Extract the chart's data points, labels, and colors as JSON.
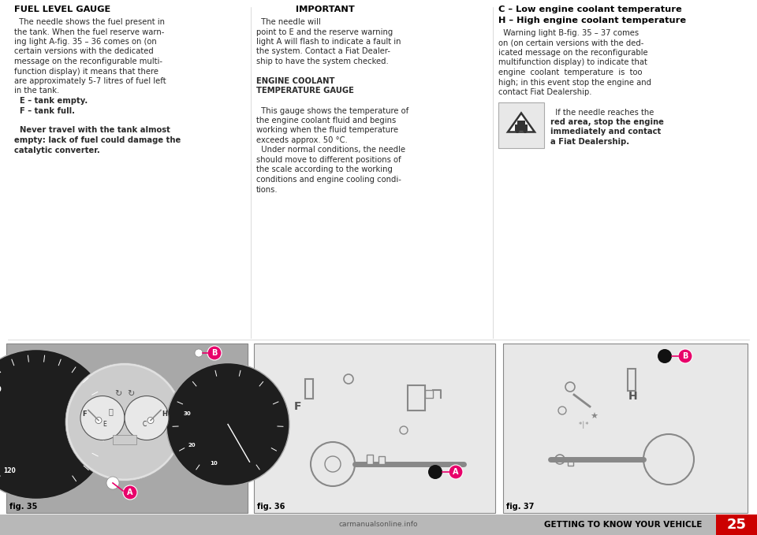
{
  "bg_color": "#ffffff",
  "text_color": "#2a2a2a",
  "title_color": "#000000",
  "page_number": "25",
  "footer_text": "GETTING TO KNOW YOUR VEHICLE",
  "footer_bg": "#b8b8b8",
  "watermark_text": "carmanualsonline.info",
  "col1_title": "FUEL LEVEL GAUGE",
  "col2_title_important": "IMPORTANT",
  "col2_title_engine": "ENGINE COOLANT\nTEMPERATURE GAUGE",
  "col3_title1": "C – Low engine coolant temperature",
  "col3_title2": "H – High engine coolant temperature",
  "col1_lines": [
    [
      "  The needle shows the fuel present in",
      false
    ],
    [
      "the tank. When the fuel reserve warn-",
      false
    ],
    [
      "ing light A-fig. 35 – 36 comes on (on",
      false
    ],
    [
      "certain versions with the dedicated",
      false
    ],
    [
      "message on the reconfigurable multi-",
      false
    ],
    [
      "function display) it means that there",
      false
    ],
    [
      "are approximately 5-7 litres of fuel left",
      false
    ],
    [
      "in the tank.",
      false
    ],
    [
      "  E – tank empty.",
      true
    ],
    [
      "  F – tank full.",
      true
    ],
    [
      "",
      false
    ],
    [
      "  Never travel with the tank almost",
      true
    ],
    [
      "empty: lack of fuel could damage the",
      true
    ],
    [
      "catalytic converter.",
      true
    ]
  ],
  "col2_lines": [
    [
      "  The needle will",
      false
    ],
    [
      "point to E and the reserve warning",
      false
    ],
    [
      "light A will flash to indicate a fault in",
      false
    ],
    [
      "the system. Contact a Fiat Dealer-",
      false
    ],
    [
      "ship to have the system checked.",
      false
    ],
    [
      "",
      false
    ],
    [
      "ENGINE COOLANT",
      true
    ],
    [
      "TEMPERATURE GAUGE",
      true
    ],
    [
      "",
      false
    ],
    [
      "  This gauge shows the temperature of",
      false
    ],
    [
      "the engine coolant fluid and begins",
      false
    ],
    [
      "working when the fluid temperature",
      false
    ],
    [
      "exceeds approx. 50 °C.",
      false
    ],
    [
      "  Under normal conditions, the needle",
      false
    ],
    [
      "should move to different positions of",
      false
    ],
    [
      "the scale according to the working",
      false
    ],
    [
      "conditions and engine cooling condi-",
      false
    ],
    [
      "tions.",
      false
    ]
  ],
  "col3_lines": [
    [
      "  Warning light B-fig. 35 – 37 comes",
      false
    ],
    [
      "on (on certain versions with the ded-",
      false
    ],
    [
      "icated message on the reconfigurable",
      false
    ],
    [
      "multifunction display) to indicate that",
      false
    ],
    [
      "engine  coolant  temperature  is  too",
      false
    ],
    [
      "high; in this event stop the engine and",
      false
    ],
    [
      "contact Fiat Dealership.",
      false
    ]
  ],
  "warn_lines": [
    [
      "  If the needle reaches the",
      false
    ],
    [
      "red area, stop the engine",
      true
    ],
    [
      "immediately and contact",
      true
    ],
    [
      "a Fiat Dealership.",
      true
    ]
  ],
  "fig35_label": "fig. 35",
  "fig36_label": "fig. 36",
  "fig37_label": "fig. 37",
  "fig_box_bg1": "#b0b0b0",
  "fig_box_bg2": "#e0e0e0",
  "fig_box_border": "#888888",
  "speedometer_dark": "#262626",
  "speedometer_mid": "#3a3a3a",
  "label_pink": "#e8006a"
}
